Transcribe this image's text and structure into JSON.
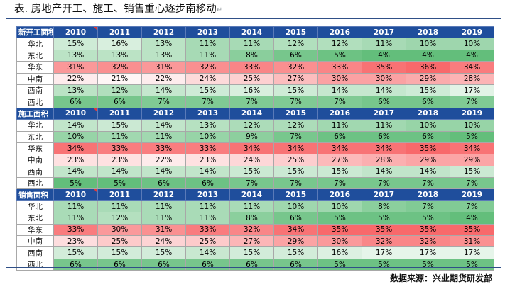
{
  "title": "表. 房地产开工、施工、销售重心逐步南移动",
  "source": "数据来源：兴业期货研发部",
  "years": [
    "2010",
    "2011",
    "2012",
    "2013",
    "2014",
    "2015",
    "2016",
    "2017",
    "2018",
    "2019"
  ],
  "colors": {
    "header_bg": "#1f4e9c",
    "rule": "#2f4f87",
    "scale_low": "#63be7b",
    "scale_high": "#f8696b"
  },
  "sections": [
    {
      "label": "新开工面积",
      "rows": [
        {
          "region": "华北",
          "values": [
            "15%",
            "16%",
            "13%",
            "11%",
            "11%",
            "12%",
            "12%",
            "11%",
            "10%",
            "10%"
          ]
        },
        {
          "region": "东北",
          "values": [
            "13%",
            "13%",
            "13%",
            "11%",
            "8%",
            "6%",
            "5%",
            "4%",
            "4%",
            "4%"
          ]
        },
        {
          "region": "华东",
          "values": [
            "31%",
            "32%",
            "31%",
            "32%",
            "33%",
            "32%",
            "33%",
            "35%",
            "36%",
            "34%"
          ]
        },
        {
          "region": "中南",
          "values": [
            "22%",
            "21%",
            "22%",
            "24%",
            "25%",
            "27%",
            "30%",
            "30%",
            "29%",
            "28%"
          ]
        },
        {
          "region": "西南",
          "values": [
            "13%",
            "12%",
            "14%",
            "15%",
            "16%",
            "15%",
            "14%",
            "14%",
            "15%",
            "17%"
          ]
        },
        {
          "region": "西北",
          "values": [
            "6%",
            "6%",
            "7%",
            "7%",
            "7%",
            "7%",
            "7%",
            "6%",
            "6%",
            "7%"
          ]
        }
      ]
    },
    {
      "label": "施工面积",
      "rows": [
        {
          "region": "华北",
          "values": [
            "14%",
            "15%",
            "14%",
            "13%",
            "12%",
            "12%",
            "11%",
            "11%",
            "10%",
            "10%"
          ]
        },
        {
          "region": "东北",
          "values": [
            "10%",
            "11%",
            "11%",
            "10%",
            "9%",
            "7%",
            "6%",
            "6%",
            "6%",
            "5%"
          ]
        },
        {
          "region": "华东",
          "values": [
            "34%",
            "33%",
            "33%",
            "33%",
            "34%",
            "34%",
            "34%",
            "34%",
            "35%",
            "34%"
          ]
        },
        {
          "region": "中南",
          "values": [
            "23%",
            "23%",
            "22%",
            "23%",
            "24%",
            "25%",
            "27%",
            "28%",
            "29%",
            "29%"
          ]
        },
        {
          "region": "西南",
          "values": [
            "14%",
            "14%",
            "14%",
            "14%",
            "15%",
            "15%",
            "15%",
            "14%",
            "14%",
            "15%"
          ]
        },
        {
          "region": "西北",
          "values": [
            "5%",
            "5%",
            "6%",
            "6%",
            "7%",
            "7%",
            "7%",
            "7%",
            "7%",
            "7%"
          ]
        }
      ]
    },
    {
      "label": "销售面积",
      "rows": [
        {
          "region": "华北",
          "values": [
            "11%",
            "11%",
            "11%",
            "11%",
            "11%",
            "10%",
            "10%",
            "8%",
            "7%",
            "7%"
          ]
        },
        {
          "region": "东北",
          "values": [
            "11%",
            "12%",
            "11%",
            "11%",
            "8%",
            "6%",
            "5%",
            "5%",
            "5%",
            "4%"
          ]
        },
        {
          "region": "华东",
          "values": [
            "33%",
            "30%",
            "31%",
            "33%",
            "32%",
            "34%",
            "35%",
            "35%",
            "35%",
            "35%"
          ]
        },
        {
          "region": "中南",
          "values": [
            "23%",
            "25%",
            "24%",
            "25%",
            "27%",
            "29%",
            "30%",
            "32%",
            "32%",
            "31%"
          ]
        },
        {
          "region": "西南",
          "values": [
            "15%",
            "15%",
            "15%",
            "14%",
            "15%",
            "15%",
            "16%",
            "17%",
            "17%",
            "17%"
          ]
        },
        {
          "region": "西北",
          "values": [
            "6%",
            "6%",
            "6%",
            "6%",
            "6%",
            "6%",
            "5%",
            "5%",
            "5%",
            "5%"
          ]
        }
      ]
    }
  ]
}
